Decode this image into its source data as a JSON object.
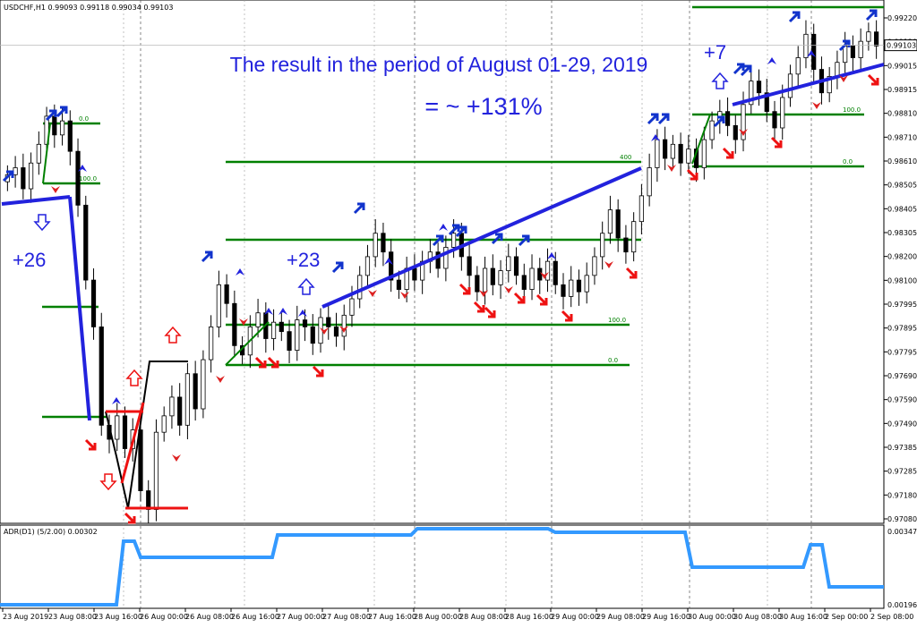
{
  "chart_data": {
    "type": "candlestick",
    "symbol_header": "USDCHF,H1  0.99093 0.99118 0.99034 0.99103",
    "price_axis": {
      "range": [
        0.9708,
        0.9922
      ],
      "ticks": [
        "0.99220",
        "0.99120",
        "0.99015",
        "0.98915",
        "0.98810",
        "0.98710",
        "0.98610",
        "0.98505",
        "0.98405",
        "0.98305",
        "0.98200",
        "0.98100",
        "0.97995",
        "0.97895",
        "0.97795",
        "0.97690",
        "0.97590",
        "0.97490",
        "0.97385",
        "0.97285",
        "0.97180",
        "0.97080"
      ],
      "current_price_label": "0.99103",
      "current_price": 0.99103
    },
    "time_axis": {
      "ticks": [
        "23 Aug 2019",
        "23 Aug 08:00",
        "23 Aug 16:00",
        "26 Aug 00:00",
        "26 Aug 08:00",
        "26 Aug 16:00",
        "27 Aug 00:00",
        "27 Aug 08:00",
        "27 Aug 16:00",
        "28 Aug 00:00",
        "28 Aug 08:00",
        "28 Aug 16:00",
        "29 Aug 00:00",
        "29 Aug 08:00",
        "29 Aug 16:00",
        "30 Aug 00:00",
        "30 Aug 08:00",
        "30 Aug 16:00",
        "2 Sep 00:00",
        "2 Sep 08:00"
      ]
    },
    "annotations": {
      "headline": "The result in the period of August 01-29, 2019",
      "result": "= ~ +131%",
      "trade_labels": [
        "+26",
        "+23",
        "+7"
      ]
    },
    "fib_levels": [
      {
        "label": "0.0",
        "price": 0.988,
        "color": "#008000"
      },
      {
        "label": "100.0",
        "price": 0.9852,
        "color": "#008000"
      },
      {
        "label": "400",
        "price": 0.9861,
        "color": "#008000"
      },
      {
        "label": "100.0",
        "price": 0.9789,
        "color": "#008000"
      },
      {
        "label": "0.0",
        "price": 0.9775,
        "color": "#008000"
      },
      {
        "label": "100.0",
        "price": 0.9882,
        "color": "#008000"
      },
      {
        "label": "0.0",
        "price": 0.9861,
        "color": "#008000"
      }
    ],
    "indicator": {
      "label": "ADR(D1) (5/2.00) 0.00302",
      "range": [
        0.00196,
        0.00347
      ],
      "ticks": [
        "0.00347",
        "0.00196"
      ],
      "color": "#3399ff"
    },
    "colors": {
      "bull_candle": "#ffffff",
      "bear_candle": "#000000",
      "trend_line": "#2222dd",
      "level_line": "#008000",
      "sell_arrow": "#ee1111",
      "buy_arrow": "#1133cc",
      "headline_text": "#2222dd"
    }
  }
}
